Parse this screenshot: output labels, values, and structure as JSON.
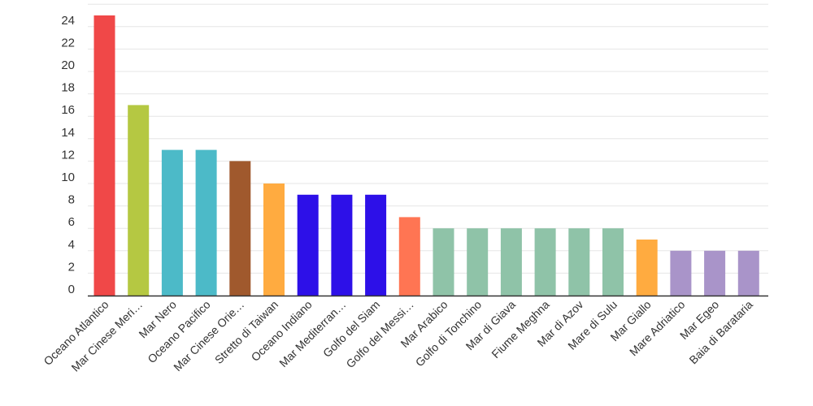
{
  "chart_data": {
    "type": "bar",
    "categories": [
      "Oceano Atlantico",
      "Mar Cinese Meri…",
      "Mar Nero",
      "Oceano Pacifico",
      "Mar Cinese Orie…",
      "Stretto di Taiwan",
      "Oceano Indiano",
      "Mar Mediterran…",
      "Golfo del Siam",
      "Golfo del Messi…",
      "Mar Arabico",
      "Golfo di Tonchino",
      "Mar di Giava",
      "Fiume Meghna",
      "Mar di Azov",
      "Mare di Sulu",
      "Mar Giallo",
      "Mare Adriatico",
      "Mar Egeo",
      "Baia di Barataria"
    ],
    "values": [
      25,
      17,
      13,
      13,
      12,
      10,
      9,
      9,
      9,
      7,
      6,
      6,
      6,
      6,
      6,
      6,
      5,
      4,
      4,
      4
    ],
    "colors": [
      "#f04848",
      "#b5c842",
      "#4cbac8",
      "#4cbac8",
      "#a0592d",
      "#ffab40",
      "#2d10e8",
      "#2d10e8",
      "#2d10e8",
      "#ff7553",
      "#8fc3a8",
      "#8fc3a8",
      "#8fc3a8",
      "#8fc3a8",
      "#8fc3a8",
      "#8fc3a8",
      "#ffab40",
      "#a994c9",
      "#a994c9",
      "#a994c9"
    ],
    "yticks": [
      0,
      2,
      4,
      6,
      8,
      10,
      12,
      14,
      16,
      18,
      20,
      22,
      24
    ],
    "ylim": [
      0,
      26
    ],
    "title": "",
    "xlabel": "",
    "ylabel": "",
    "grid": true,
    "legend": "none"
  }
}
